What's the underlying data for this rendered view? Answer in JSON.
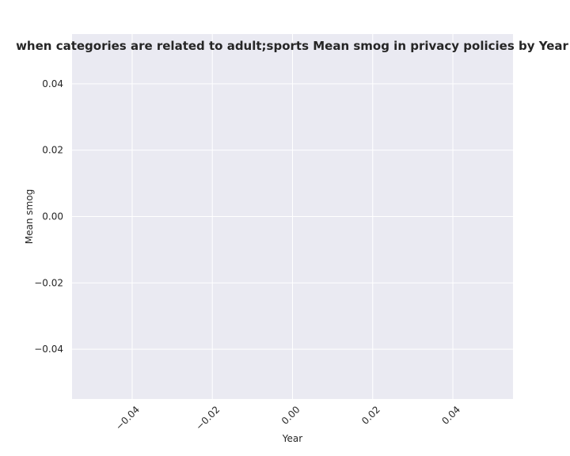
{
  "chart_data": {
    "type": "line",
    "title": "when categories are related to adult;sports Mean smog in privacy policies by Year",
    "xlabel": "Year",
    "ylabel": "Mean smog",
    "xlim": [
      -0.055,
      0.055
    ],
    "ylim": [
      -0.055,
      0.055
    ],
    "x_ticks": [
      -0.04,
      -0.02,
      0.0,
      0.02,
      0.04
    ],
    "x_tick_labels": [
      "−0.04",
      "−0.02",
      "0.00",
      "0.02",
      "0.04"
    ],
    "y_ticks": [
      -0.04,
      -0.02,
      0.0,
      0.02,
      0.04
    ],
    "y_tick_labels": [
      "−0.04",
      "−0.02",
      "0.00",
      "0.02",
      "0.04"
    ],
    "series": [],
    "grid": true,
    "colors": {
      "plot_background": "#eaeaf2",
      "grid": "#ffffff",
      "text": "#262626"
    }
  }
}
